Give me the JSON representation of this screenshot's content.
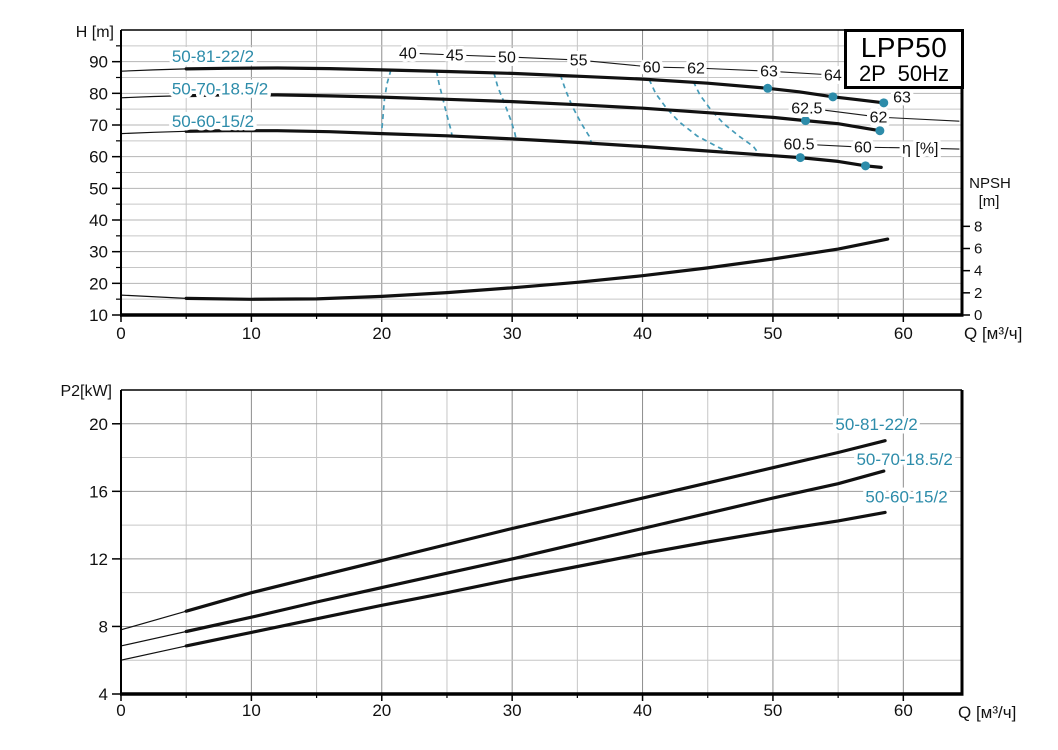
{
  "accent_color": "#2d8caa",
  "dash_color": "#449bb8",
  "curve_color": "#111111",
  "chart_data": [
    {
      "id": "head",
      "type": "line",
      "title": "LPP50 2P 50Hz",
      "corner_box": [
        "LPP50",
        "2P  50Hz"
      ],
      "xlabel": "Q [м³/ч]",
      "ylabel": "H [m]",
      "xlim": [
        0,
        64.5
      ],
      "ylim": [
        10,
        100
      ],
      "x_major_ticks": [
        0,
        10,
        20,
        30,
        40,
        50,
        60
      ],
      "x_minor_step": 5,
      "y_major_ticks": [
        10,
        20,
        30,
        40,
        50,
        60,
        70,
        80,
        90
      ],
      "y_minor_step": 5,
      "right_axis": {
        "label_lines": [
          "NPSH",
          "[m]"
        ],
        "ticks": [
          8,
          6,
          4,
          2,
          0
        ],
        "h_offset": 10,
        "h_per_unit": 3.5
      },
      "series": [
        {
          "name": "50-81-22/2",
          "label_q": 3.9,
          "label_h": 91.8,
          "thin_until": 5,
          "points": [
            [
              0,
              87.0
            ],
            [
              2.5,
              87.4
            ],
            [
              5,
              87.7
            ],
            [
              8,
              87.9
            ],
            [
              12,
              88.0
            ],
            [
              16,
              87.8
            ],
            [
              20,
              87.4
            ],
            [
              25,
              86.9
            ],
            [
              30,
              86.3
            ],
            [
              35,
              85.4
            ],
            [
              40,
              84.5
            ],
            [
              45,
              83.2
            ],
            [
              49.6,
              81.6
            ],
            [
              52,
              80.5
            ],
            [
              54.6,
              78.9
            ],
            [
              56.5,
              78.0
            ],
            [
              58.5,
              77.0
            ]
          ]
        },
        {
          "name": "50-70-18.5/2",
          "label_q": 3.9,
          "label_h": 81.5,
          "thin_until": 5,
          "points": [
            [
              0,
              78.6
            ],
            [
              2.5,
              79.0
            ],
            [
              5,
              79.3
            ],
            [
              8,
              79.5
            ],
            [
              12,
              79.5
            ],
            [
              16,
              79.2
            ],
            [
              20,
              78.8
            ],
            [
              25,
              78.1
            ],
            [
              30,
              77.4
            ],
            [
              35,
              76.4
            ],
            [
              40,
              75.3
            ],
            [
              45,
              73.9
            ],
            [
              48,
              73.0
            ],
            [
              50,
              72.4
            ],
            [
              52.5,
              71.4
            ],
            [
              55,
              70.4
            ],
            [
              58.2,
              68.2
            ]
          ]
        },
        {
          "name": "50-60-15/2",
          "label_q": 3.9,
          "label_h": 71.3,
          "thin_until": 5,
          "points": [
            [
              0,
              67.3
            ],
            [
              2.5,
              67.7
            ],
            [
              5,
              68.0
            ],
            [
              8,
              68.2
            ],
            [
              12,
              68.2
            ],
            [
              16,
              67.9
            ],
            [
              20,
              67.3
            ],
            [
              25,
              66.6
            ],
            [
              30,
              65.6
            ],
            [
              35,
              64.5
            ],
            [
              40,
              63.2
            ],
            [
              45,
              61.8
            ],
            [
              48,
              60.9
            ],
            [
              50,
              60.3
            ],
            [
              52.1,
              59.7
            ],
            [
              55,
              58.5
            ],
            [
              57.1,
              57.1
            ],
            [
              58.3,
              56.6
            ]
          ]
        }
      ],
      "npsh_series": {
        "thin_until": 5,
        "points_q_npsh": [
          [
            0,
            1.8
          ],
          [
            5,
            1.5
          ],
          [
            10,
            1.42
          ],
          [
            15,
            1.45
          ],
          [
            20,
            1.68
          ],
          [
            25,
            2.02
          ],
          [
            30,
            2.45
          ],
          [
            35,
            2.95
          ],
          [
            40,
            3.55
          ],
          [
            45,
            4.25
          ],
          [
            50,
            5.05
          ],
          [
            55,
            5.95
          ],
          [
            58.8,
            6.85
          ]
        ]
      },
      "efficiency_dots": [
        {
          "q": 49.6,
          "h": 81.6,
          "eta": 63
        },
        {
          "q": 54.6,
          "h": 78.9,
          "eta": 64
        },
        {
          "q": 58.5,
          "h": 77.0,
          "eta": 63
        },
        {
          "q": 52.5,
          "h": 71.4,
          "eta": 62.5
        },
        {
          "q": 58.2,
          "h": 68.2,
          "eta": 62
        },
        {
          "q": 52.1,
          "h": 59.7,
          "eta": 60.5
        },
        {
          "q": 57.1,
          "h": 57.1,
          "eta": 60
        }
      ],
      "efficiency_label_rows": [
        {
          "extend_to": [
            64.3,
            84.2
          ],
          "labels": [
            {
              "text": "40",
              "q": 22.0,
              "h": 92.7
            },
            {
              "text": "45",
              "q": 25.6,
              "h": 92.1
            },
            {
              "text": "50",
              "q": 29.6,
              "h": 91.5
            },
            {
              "text": "55",
              "q": 35.1,
              "h": 90.5
            },
            {
              "text": "60",
              "q": 40.7,
              "h": 88.3
            },
            {
              "text": "62",
              "q": 44.1,
              "h": 88.0
            },
            {
              "text": "63",
              "q": 49.7,
              "h": 87.0
            },
            {
              "text": "64",
              "q": 54.6,
              "h": 85.8
            }
          ]
        },
        {
          "extend_to": [
            64.3,
            71.2
          ],
          "labels": [
            {
              "text": "62.5",
              "q": 52.6,
              "h": 75.4
            },
            {
              "text": "62",
              "q": 58.1,
              "h": 72.5
            }
          ]
        },
        {
          "extend_to": [
            64.3,
            62.4
          ],
          "labels": [
            {
              "text": "60.5",
              "q": 52.0,
              "h": 64.0
            },
            {
              "text": "60",
              "q": 56.9,
              "h": 63.0
            },
            {
              "text": "η [%]",
              "q": 61.3,
              "h": 62.7
            }
          ]
        }
      ],
      "free_labels": [
        {
          "text": "63",
          "q": 59.9,
          "h": 78.8
        }
      ],
      "iso_efficiency_curves": [
        {
          "value": 40,
          "path": [
            [
              20.7,
              87.4
            ],
            [
              20.4,
              83
            ],
            [
              20.2,
              78
            ],
            [
              20.1,
              73
            ],
            [
              20.0,
              68.5
            ],
            [
              20.1,
              67.1
            ]
          ]
        },
        {
          "value": 45,
          "path": [
            [
              24.2,
              87.0
            ],
            [
              24.4,
              83
            ],
            [
              24.7,
              78
            ],
            [
              25.0,
              73
            ],
            [
              25.3,
              68.5
            ],
            [
              25.4,
              66.4
            ]
          ]
        },
        {
          "value": 50,
          "path": [
            [
              28.6,
              86.5
            ],
            [
              28.9,
              82
            ],
            [
              29.4,
              77
            ],
            [
              29.9,
              71.5
            ],
            [
              30.2,
              67.5
            ],
            [
              30.3,
              65.5
            ]
          ]
        },
        {
          "value": 55,
          "path": [
            [
              33.7,
              85.8
            ],
            [
              34.1,
              81
            ],
            [
              34.6,
              76
            ],
            [
              35.3,
              70.5
            ],
            [
              35.9,
              66.5
            ],
            [
              36.1,
              64.2
            ]
          ]
        },
        {
          "value": 60,
          "path": [
            [
              40.5,
              84.4
            ],
            [
              41.0,
              80
            ],
            [
              41.8,
              75.5
            ],
            [
              42.8,
              71
            ],
            [
              44.2,
              66.5
            ],
            [
              45.8,
              63.0
            ],
            [
              46.7,
              61.2
            ]
          ]
        },
        {
          "value": 62,
          "path": [
            [
              43.9,
              83.7
            ],
            [
              44.4,
              79.5
            ],
            [
              45.2,
              75
            ],
            [
              46.2,
              70.5
            ],
            [
              47.4,
              66.5
            ],
            [
              48.5,
              63.2
            ],
            [
              49.0,
              60.4
            ]
          ]
        }
      ]
    },
    {
      "id": "power",
      "type": "line",
      "title": "",
      "xlabel": "Q [м³/ч]",
      "ylabel": "P2[kW]",
      "xlim": [
        0,
        64.5
      ],
      "ylim": [
        4,
        22
      ],
      "x_major_ticks": [
        0,
        10,
        20,
        30,
        40,
        50,
        60
      ],
      "x_minor_step": 5,
      "y_major_ticks": [
        4,
        8,
        12,
        16,
        20
      ],
      "y_minor_step": 2,
      "series": [
        {
          "name": "50-81-22/2",
          "label_right_q": 61.1,
          "label_p": 20.0,
          "thin_until": 5,
          "points": [
            [
              0,
              7.8
            ],
            [
              5,
              8.9
            ],
            [
              10,
              10.0
            ],
            [
              15,
              10.95
            ],
            [
              20,
              11.9
            ],
            [
              25,
              12.85
            ],
            [
              30,
              13.8
            ],
            [
              35,
              14.7
            ],
            [
              40,
              15.6
            ],
            [
              45,
              16.5
            ],
            [
              50,
              17.4
            ],
            [
              55,
              18.3
            ],
            [
              58.6,
              19.0
            ]
          ]
        },
        {
          "name": "50-70-18.5/2",
          "label_right_q": 63.8,
          "label_p": 17.9,
          "thin_until": 5,
          "points": [
            [
              0,
              6.85
            ],
            [
              5,
              7.7
            ],
            [
              10,
              8.55
            ],
            [
              15,
              9.45
            ],
            [
              20,
              10.3
            ],
            [
              25,
              11.15
            ],
            [
              30,
              12.0
            ],
            [
              35,
              12.9
            ],
            [
              40,
              13.8
            ],
            [
              45,
              14.7
            ],
            [
              50,
              15.6
            ],
            [
              55,
              16.45
            ],
            [
              58.5,
              17.2
            ]
          ]
        },
        {
          "name": "50-60-15/2",
          "label_right_q": 63.4,
          "label_p": 15.7,
          "thin_until": 5,
          "points": [
            [
              0,
              6.0
            ],
            [
              5,
              6.85
            ],
            [
              10,
              7.65
            ],
            [
              15,
              8.45
            ],
            [
              20,
              9.25
            ],
            [
              25,
              10.0
            ],
            [
              30,
              10.8
            ],
            [
              35,
              11.55
            ],
            [
              40,
              12.3
            ],
            [
              45,
              13.0
            ],
            [
              50,
              13.65
            ],
            [
              55,
              14.25
            ],
            [
              58.6,
              14.75
            ]
          ]
        }
      ]
    }
  ]
}
